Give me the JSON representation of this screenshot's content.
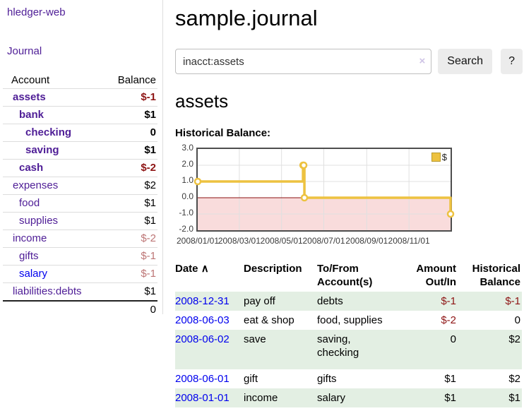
{
  "app": {
    "logo": "hledger-web",
    "nav_journal": "Journal"
  },
  "colors": {
    "link_purple": "#4e1d96",
    "link_blue": "#0000ee",
    "negative_strong": "#8e1414",
    "negative_muted": "#bd7575",
    "row_stripe_green": "#e3efe3",
    "chart_line_gold": "#edc240",
    "chart_negative_fill": "#f9dcdc",
    "chart_zero_line": "#8b1111",
    "chart_grid": "#e0e0e0",
    "chart_border": "#4d4d4d"
  },
  "sidebar": {
    "headers": [
      "Account",
      "Balance"
    ],
    "rows": [
      {
        "account": "assets",
        "level": 1,
        "bold": true,
        "balance": "$-1"
      },
      {
        "account": "bank",
        "level": 2,
        "bold": true,
        "balance": "$1"
      },
      {
        "account": "checking",
        "level": 3,
        "bold": true,
        "balance": "0"
      },
      {
        "account": "saving",
        "level": 3,
        "bold": true,
        "balance": "$1"
      },
      {
        "account": "cash",
        "level": 2,
        "bold": true,
        "balance": "$-2"
      },
      {
        "account": "expenses",
        "level": 1,
        "bold": false,
        "balance": "$2"
      },
      {
        "account": "food",
        "level": 2,
        "bold": false,
        "balance": "$1"
      },
      {
        "account": "supplies",
        "level": 2,
        "bold": false,
        "balance": "$1"
      },
      {
        "account": "income",
        "level": 1,
        "bold": false,
        "balance": "$-2"
      },
      {
        "account": "gifts",
        "level": 2,
        "bold": false,
        "balance": "$-1"
      },
      {
        "account": "salary",
        "level": 2,
        "bold": false,
        "balance": "$-1",
        "blue": true
      },
      {
        "account": "liabilities:debts",
        "level": 1,
        "bold": false,
        "balance": "$1"
      }
    ],
    "total": "0"
  },
  "main": {
    "title": "sample.journal",
    "search": {
      "value": "inacct:assets",
      "clear_icon": "×",
      "button": "Search",
      "help": "?"
    },
    "account_heading": "assets",
    "chart_title": "Historical Balance:"
  },
  "chart_data": {
    "type": "line",
    "step": true,
    "title": "Historical Balance",
    "series": [
      {
        "name": "$",
        "points": [
          [
            "2008-01-01",
            1
          ],
          [
            "2008-06-01",
            2
          ],
          [
            "2008-06-02",
            2
          ],
          [
            "2008-06-03",
            0
          ],
          [
            "2008-12-31",
            -1
          ]
        ]
      }
    ],
    "x_range": [
      "2008-01-01",
      "2008-12-31"
    ],
    "x_ticks": [
      {
        "date": "2008-01-01",
        "label": "2008/01/01"
      },
      {
        "date": "2008-03-01",
        "label": "2008/03/01"
      },
      {
        "date": "2008-05-01",
        "label": "2008/05/01"
      },
      {
        "date": "2008-07-01",
        "label": "2008/07/01"
      },
      {
        "date": "2008-09-01",
        "label": "2008/09/01"
      },
      {
        "date": "2008-11-01",
        "label": "2008/11/01"
      }
    ],
    "y_ticks": [
      {
        "v": 3,
        "label": "3.0"
      },
      {
        "v": 2,
        "label": "2.0"
      },
      {
        "v": 1,
        "label": "1.0"
      },
      {
        "v": 0,
        "label": "0.0"
      },
      {
        "v": -1,
        "label": "-1.0"
      },
      {
        "v": -2,
        "label": "-2.0"
      }
    ],
    "ylim": [
      -2,
      3
    ],
    "grid": true,
    "legend": {
      "position": "top-right",
      "label": "$"
    }
  },
  "register": {
    "headers": {
      "date": "Date",
      "sort_indicator": "∧",
      "description": "Description",
      "accounts": "To/From Account(s)",
      "amount": "Amount Out/In",
      "historical": "Historical Balance"
    },
    "rows": [
      {
        "date": "2008-12-31",
        "description": "pay off",
        "accounts": [
          "debts"
        ],
        "amount": "$-1",
        "historical": "$-1",
        "stripe": true,
        "wrap": false
      },
      {
        "date": "2008-06-03",
        "description": "eat & shop",
        "accounts": [
          "food",
          "supplies"
        ],
        "amount": "$-2",
        "historical": "0",
        "stripe": false,
        "wrap": false
      },
      {
        "date": "2008-06-02",
        "description": "save",
        "accounts": [
          "saving",
          "checking"
        ],
        "amount": "0",
        "historical": "$2",
        "stripe": true,
        "wrap": true
      },
      {
        "date": "2008-06-01",
        "description": "gift",
        "accounts": [
          "gifts"
        ],
        "amount": "$1",
        "historical": "$2",
        "stripe": false,
        "wrap": false
      },
      {
        "date": "2008-01-01",
        "description": "income",
        "accounts": [
          "salary"
        ],
        "amount": "$1",
        "historical": "$1",
        "stripe": true,
        "wrap": false
      }
    ]
  }
}
